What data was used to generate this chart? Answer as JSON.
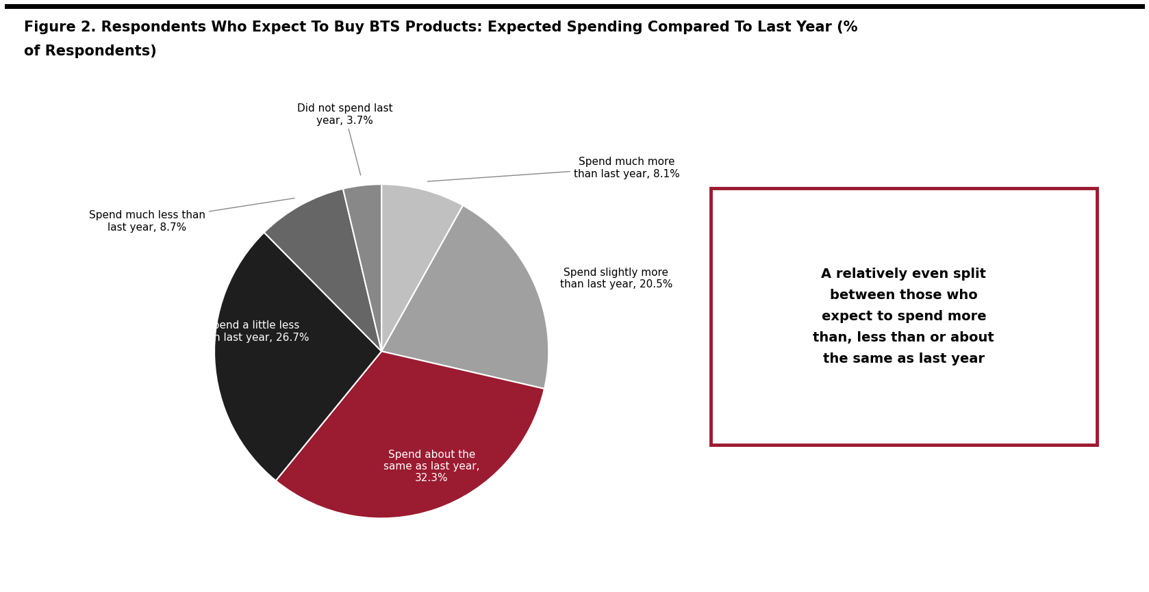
{
  "title_line1": "Figure 2. Respondents Who Expect To Buy BTS Products: Expected Spending Compared To Last Year (%",
  "title_line2": "of Respondents)",
  "slices": [
    {
      "label": "Spend much more\nthan last year, 8.1%",
      "value": 8.1,
      "color": "#c0c0c0",
      "text_color": "black",
      "inside": false
    },
    {
      "label": "Spend slightly more\nthan last year, 20.5%",
      "value": 20.5,
      "color": "#a0a0a0",
      "text_color": "black",
      "inside": false
    },
    {
      "label": "Spend about the\nsame as last year,\n32.3%",
      "value": 32.3,
      "color": "#9b1b30",
      "text_color": "white",
      "inside": true
    },
    {
      "label": "Spend a little less\nthan last year, 26.7%",
      "value": 26.7,
      "color": "#1e1e1e",
      "text_color": "white",
      "inside": true
    },
    {
      "label": "Spend much less than\nlast year, 8.7%",
      "value": 8.7,
      "color": "#666666",
      "text_color": "black",
      "inside": false
    },
    {
      "label": "Did not spend last\nyear, 3.7%",
      "value": 3.7,
      "color": "#888888",
      "text_color": "black",
      "inside": false
    }
  ],
  "annotation_text": "A relatively even split\nbetween those who\nexpect to spend more\nthan, less than or about\nthe same as last year",
  "annotation_box_color": "#9b1b30",
  "background_color": "#ffffff",
  "title_fontsize": 15,
  "label_fontsize": 11,
  "annotation_fontsize": 14
}
